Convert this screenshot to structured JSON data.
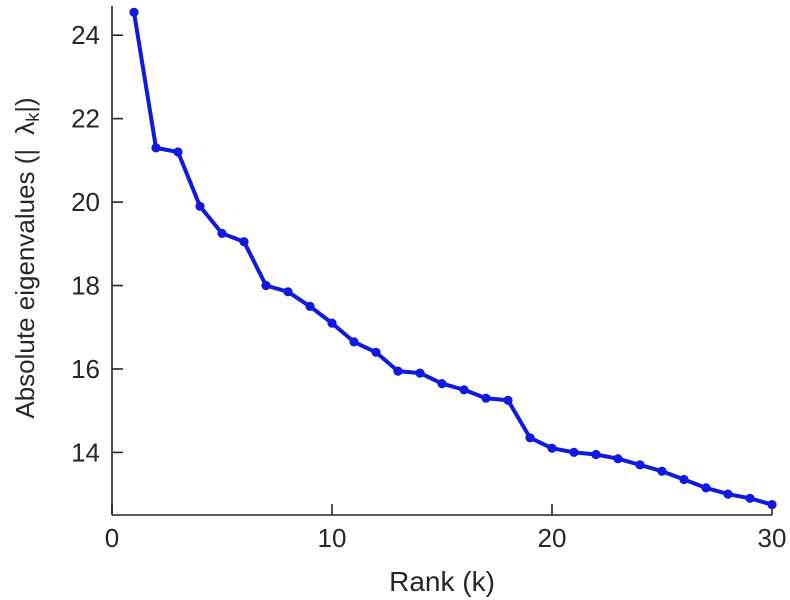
{
  "figure": {
    "background": "#ffffff",
    "axis_color": "#262626",
    "xlabel": "Rank (k)",
    "ylabel_prefix": "Absolute eigenvalues (|",
    "ylabel_lambda": "λ",
    "ylabel_sub": "k",
    "ylabel_suffix": "|)"
  },
  "chart_data": {
    "type": "line",
    "title": "",
    "xlabel": "Rank (k)",
    "ylabel": "Absolute eigenvalues (|lambda_k|)",
    "line_color": "#1019e0",
    "marker": "circle",
    "grid": false,
    "legend": null,
    "xlim": [
      0,
      30
    ],
    "ylim": [
      12.5,
      24.7
    ],
    "xticks": [
      0,
      10,
      20,
      30
    ],
    "yticks": [
      14,
      16,
      18,
      20,
      22,
      24
    ],
    "x": [
      1,
      2,
      3,
      4,
      5,
      6,
      7,
      8,
      9,
      10,
      11,
      12,
      13,
      14,
      15,
      16,
      17,
      18,
      19,
      20,
      21,
      22,
      23,
      24,
      25,
      26,
      27,
      28,
      29,
      30
    ],
    "y": [
      24.55,
      21.3,
      21.2,
      19.9,
      19.25,
      19.05,
      18.0,
      17.85,
      17.5,
      17.1,
      16.65,
      16.4,
      15.95,
      15.9,
      15.65,
      15.5,
      15.3,
      15.25,
      14.35,
      14.1,
      14.0,
      13.95,
      13.85,
      13.7,
      13.55,
      13.35,
      13.15,
      13.0,
      12.9,
      12.75
    ]
  }
}
